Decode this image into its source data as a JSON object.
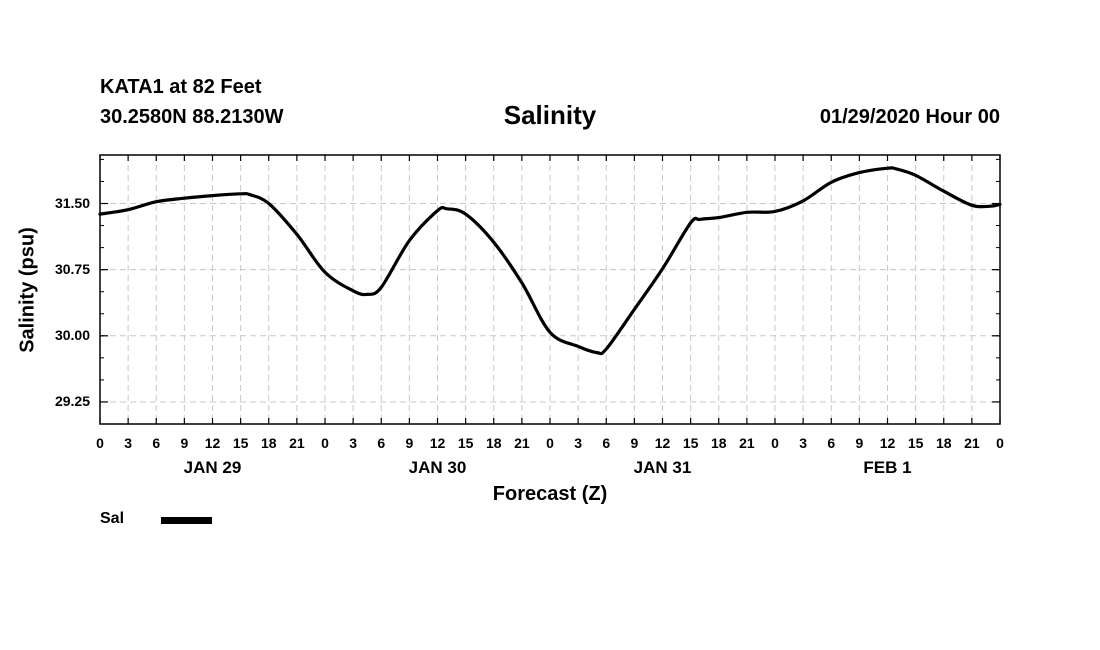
{
  "header": {
    "station": "KATA1 at 82 Feet",
    "coords": "30.2580N 88.2130W",
    "datetime": "01/29/2020 Hour 00"
  },
  "chart_data": {
    "type": "line",
    "title": "Salinity",
    "xlabel": "Forecast (Z)",
    "ylabel": "Salinity (psu)",
    "ylim": [
      29.0,
      32.05
    ],
    "yticks": [
      "29.25",
      "30.00",
      "30.75",
      "31.50"
    ],
    "xlim": [
      0,
      96
    ],
    "xticks": [
      "0",
      "3",
      "6",
      "9",
      "12",
      "15",
      "18",
      "21",
      "0",
      "3",
      "6",
      "9",
      "12",
      "15",
      "18",
      "21",
      "0",
      "3",
      "6",
      "9",
      "12",
      "15",
      "18",
      "21",
      "0",
      "3",
      "6",
      "9",
      "12",
      "15",
      "18",
      "21",
      "0"
    ],
    "date_labels": [
      {
        "text": "JAN 29",
        "hour": 12
      },
      {
        "text": "JAN 30",
        "hour": 36
      },
      {
        "text": "JAN 31",
        "hour": 60
      },
      {
        "text": "FEB 1",
        "hour": 84
      }
    ],
    "grid": true,
    "series": [
      {
        "name": "Sal",
        "color": "#000000",
        "x": [
          0,
          3,
          6,
          9,
          12,
          15,
          16,
          18,
          21,
          24,
          27,
          28.5,
          30,
          33,
          36,
          37,
          39,
          42,
          45,
          48,
          51,
          53,
          54,
          57,
          60,
          63,
          64,
          66,
          69,
          72,
          75,
          78,
          81,
          84,
          85,
          87,
          90,
          93,
          95,
          96
        ],
        "y": [
          31.38,
          31.43,
          31.52,
          31.56,
          31.59,
          31.61,
          31.6,
          31.5,
          31.15,
          30.72,
          30.51,
          30.47,
          30.55,
          31.08,
          31.42,
          31.44,
          31.38,
          31.06,
          30.6,
          30.04,
          29.88,
          29.81,
          29.85,
          30.3,
          30.76,
          31.28,
          31.32,
          31.34,
          31.4,
          31.41,
          31.53,
          31.74,
          31.85,
          31.9,
          31.89,
          31.82,
          31.64,
          31.48,
          31.47,
          31.49
        ]
      }
    ]
  },
  "legend": {
    "label": "Sal",
    "color": "#000000"
  }
}
